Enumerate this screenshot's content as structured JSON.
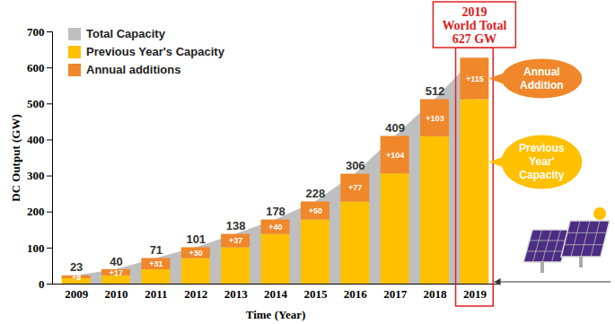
{
  "chart_data": {
    "type": "bar",
    "stacked": true,
    "data_labels": true,
    "grid": false,
    "legend": "top-left",
    "x_label": "Time (Year)",
    "y_label": "DC Output (GW)",
    "categories": [
      "2009",
      "2010",
      "2011",
      "2012",
      "2013",
      "2014",
      "2015",
      "2016",
      "2017",
      "2018",
      "2019"
    ],
    "series": [
      {
        "name": "Total Capacity",
        "type": "area",
        "color": "#bfbfbf",
        "values": [
          23,
          40,
          71,
          101,
          138,
          178,
          228,
          306,
          409,
          512,
          627
        ],
        "value_labels": [
          "23",
          "40",
          "71",
          "101",
          "138",
          "178",
          "228",
          "306",
          "409",
          "512",
          null
        ]
      },
      {
        "name": "Previous Year's Capacity",
        "type": "bar",
        "color": "#ffc000",
        "values": [
          15,
          23,
          40,
          71,
          101,
          138,
          178,
          228,
          306,
          409,
          512
        ]
      },
      {
        "name": "Annual additions",
        "type": "bar",
        "color": "#f0872a",
        "values": [
          8,
          17,
          31,
          30,
          37,
          40,
          50,
          77,
          104,
          103,
          115
        ],
        "value_labels": [
          "+8",
          "+17",
          "+31",
          "+30",
          "+37",
          "+40",
          "+50",
          "+77",
          "+104",
          "+103",
          "+115"
        ]
      }
    ],
    "ylim": [
      0,
      700
    ],
    "yticks": [
      0,
      100,
      200,
      300,
      400,
      500,
      600,
      700
    ],
    "annotations": [
      {
        "text": "2019\nWorld Total\n627 GW",
        "category": "2019"
      },
      {
        "text": "Annual\nAddition",
        "series": "Annual additions"
      },
      {
        "text": "Previous\nYear'\nCapacity",
        "series": "Previous Year's Capacity"
      }
    ]
  }
}
